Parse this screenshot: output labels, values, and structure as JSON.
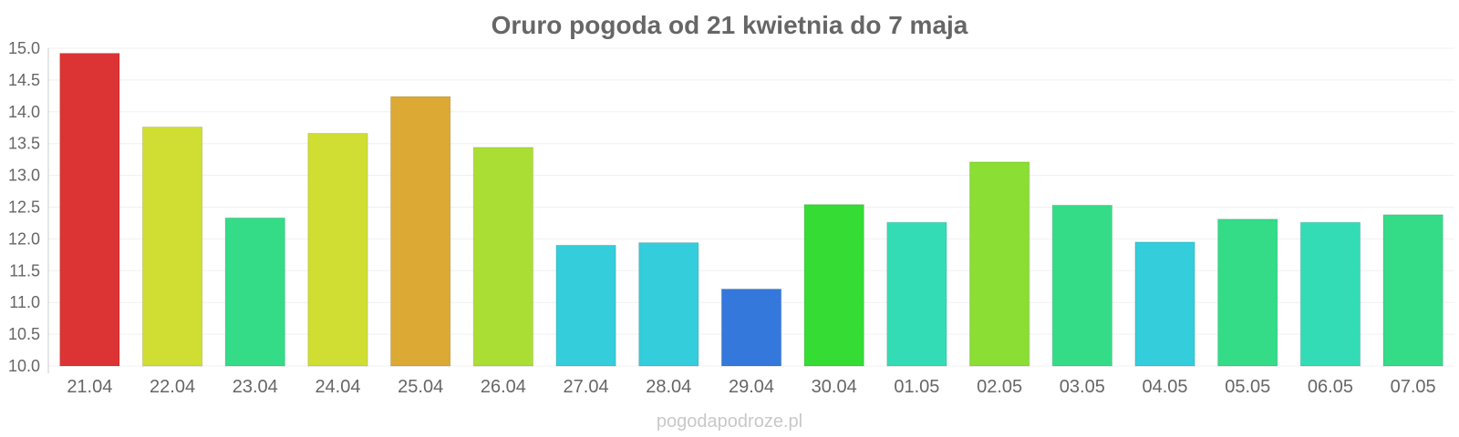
{
  "chart_data": {
    "type": "bar",
    "title": "Oruro pogoda od 21 kwietnia do 7 maja",
    "xlabel": "",
    "ylabel": "",
    "ylim": [
      10.0,
      15.0
    ],
    "yticks": [
      "10.0",
      "10.5",
      "11.0",
      "11.5",
      "12.0",
      "12.5",
      "13.0",
      "13.5",
      "14.0",
      "14.5",
      "15.0"
    ],
    "grid": true,
    "legend": "none",
    "categories": [
      "21.04",
      "22.04",
      "23.04",
      "24.04",
      "25.04",
      "26.04",
      "27.04",
      "28.04",
      "29.04",
      "30.04",
      "01.05",
      "02.05",
      "03.05",
      "04.05",
      "05.05",
      "06.05",
      "07.05"
    ],
    "values": [
      14.92,
      13.76,
      12.33,
      13.66,
      14.24,
      13.44,
      11.9,
      11.94,
      11.21,
      12.54,
      12.26,
      13.21,
      12.53,
      11.95,
      12.31,
      12.26,
      12.38
    ],
    "colors": [
      "#dc3434",
      "#d0de34",
      "#34dc87",
      "#d0de34",
      "#dba934",
      "#abde34",
      "#34cddb",
      "#34cddb",
      "#3478db",
      "#34dc34",
      "#34dcb6",
      "#8ade34",
      "#34dc87",
      "#34cddb",
      "#34dc87",
      "#34dcb6",
      "#34dc87"
    ]
  },
  "watermark": "pogodapodroze.pl"
}
